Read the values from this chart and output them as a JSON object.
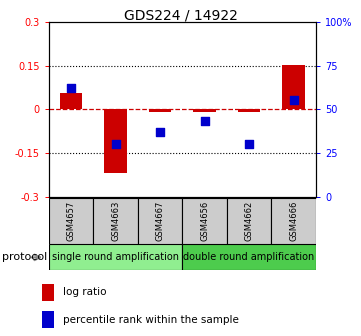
{
  "title": "GDS224 / 14922",
  "samples": [
    "GSM4657",
    "GSM4663",
    "GSM4667",
    "GSM4656",
    "GSM4662",
    "GSM4666"
  ],
  "log_ratio": [
    0.055,
    -0.22,
    -0.008,
    -0.01,
    -0.008,
    0.152
  ],
  "percentile": [
    62,
    30,
    37,
    43,
    30,
    55
  ],
  "ylim_left": [
    -0.3,
    0.3
  ],
  "ylim_right": [
    0,
    100
  ],
  "yticks_left": [
    -0.3,
    -0.15,
    0,
    0.15,
    0.3
  ],
  "yticks_right": [
    0,
    25,
    50,
    75,
    100
  ],
  "ytick_labels_left": [
    "-0.3",
    "-0.15",
    "0",
    "0.15",
    "0.3"
  ],
  "ytick_labels_right": [
    "0",
    "25",
    "50",
    "75",
    "100%"
  ],
  "hlines_dotted": [
    -0.15,
    0.15
  ],
  "hline_dashed": 0,
  "protocol_groups": [
    {
      "label": "single round amplification",
      "indices": [
        0,
        1,
        2
      ],
      "color": "#90ee90"
    },
    {
      "label": "double round amplification",
      "indices": [
        3,
        4,
        5
      ],
      "color": "#4dcc4d"
    }
  ],
  "bar_color": "#cc0000",
  "dot_color": "#0000cc",
  "bar_width": 0.5,
  "dot_size": 30,
  "zero_line_color": "#cc0000",
  "sample_box_color": "#cccccc",
  "bg_color": "#ffffff",
  "legend_red_label": "log ratio",
  "legend_blue_label": "percentile rank within the sample",
  "protocol_label": "protocol",
  "title_fontsize": 10,
  "tick_fontsize": 7,
  "sample_fontsize": 6,
  "proto_fontsize": 7,
  "legend_fontsize": 7.5
}
